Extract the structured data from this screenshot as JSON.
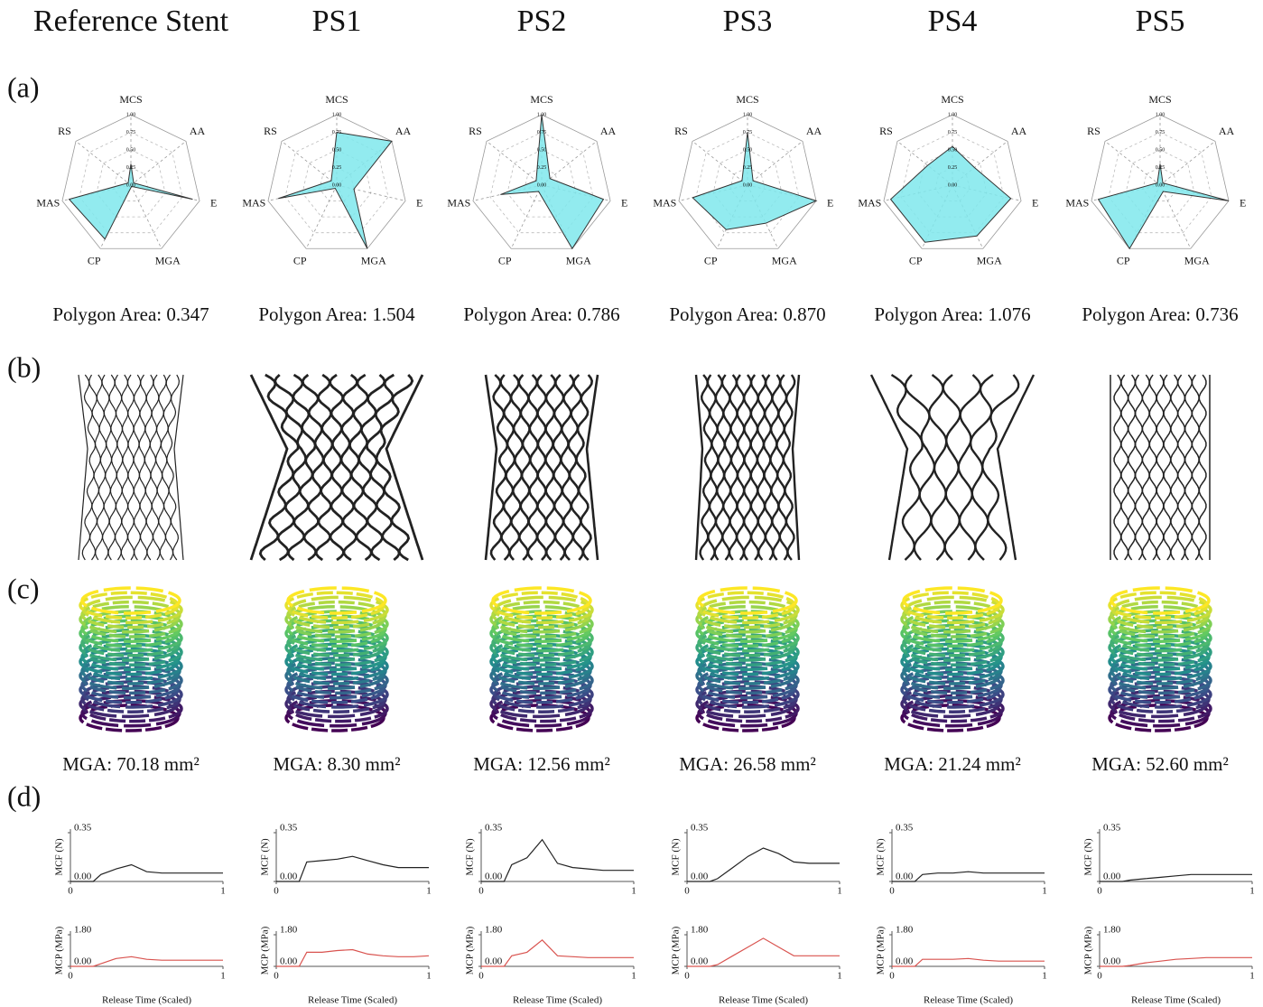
{
  "columns": [
    "Reference Stent",
    "PS1",
    "PS2",
    "PS3",
    "PS4",
    "PS5"
  ],
  "panels": [
    "(a)",
    "(b)",
    "(c)",
    "(d)"
  ],
  "polygon_areas": [
    "Polygon Area: 0.347",
    "Polygon Area: 1.504",
    "Polygon Area: 0.786",
    "Polygon Area: 0.870",
    "Polygon Area: 1.076",
    "Polygon Area: 0.736"
  ],
  "mga_labels": [
    "MGA: 70.18 mm²",
    "MGA: 8.30 mm²",
    "MGA: 12.56 mm²",
    "MGA: 26.58 mm²",
    "MGA: 21.24 mm²",
    "MGA: 52.60 mm²"
  ],
  "chart_data": [
    {
      "type": "radar",
      "axes": [
        "MCS",
        "AA",
        "E",
        "MGA",
        "CP",
        "MAS",
        "RS"
      ],
      "values": [
        0.3,
        0.05,
        0.9,
        0.02,
        0.85,
        0.9,
        0.05
      ],
      "rlim": [
        0,
        1
      ],
      "rticks": [
        {
          "value": 0,
          "label": "0.00"
        },
        {
          "value": 0.25,
          "label": "0.25"
        },
        {
          "value": 0.5,
          "label": "0.50"
        },
        {
          "value": 0.75,
          "label": "0.75"
        },
        {
          "value": 1,
          "label": "1.00"
        }
      ],
      "color": "#7fe7ec"
    },
    {
      "type": "radar",
      "axes": [
        "MCS",
        "AA",
        "E",
        "MGA",
        "CP",
        "MAS",
        "RS"
      ],
      "values": [
        0.75,
        1.0,
        0.25,
        1.0,
        0.05,
        0.85,
        0.1
      ],
      "rlim": [
        0,
        1
      ],
      "rticks": [
        {
          "value": 0,
          "label": "0.00"
        },
        {
          "value": 0.25,
          "label": "0.25"
        },
        {
          "value": 0.5,
          "label": "0.50"
        },
        {
          "value": 0.75,
          "label": "0.75"
        },
        {
          "value": 1,
          "label": "1.00"
        }
      ],
      "color": "#7fe7ec"
    },
    {
      "type": "radar",
      "axes": [
        "MCS",
        "AA",
        "E",
        "MGA",
        "CP",
        "MAS",
        "RS"
      ],
      "values": [
        1.0,
        0.15,
        0.9,
        1.0,
        0.1,
        0.6,
        0.1
      ],
      "rlim": [
        0,
        1
      ],
      "rticks": [
        {
          "value": 0,
          "label": "0.00"
        },
        {
          "value": 0.25,
          "label": "0.25"
        },
        {
          "value": 0.5,
          "label": "0.50"
        },
        {
          "value": 0.75,
          "label": "0.75"
        },
        {
          "value": 1,
          "label": "1.00"
        }
      ],
      "color": "#7fe7ec"
    },
    {
      "type": "radar",
      "axes": [
        "MCS",
        "AA",
        "E",
        "MGA",
        "CP",
        "MAS",
        "RS"
      ],
      "values": [
        0.75,
        0.1,
        1.0,
        0.6,
        0.7,
        0.8,
        0.1
      ],
      "rlim": [
        0,
        1
      ],
      "rticks": [
        {
          "value": 0,
          "label": "0.00"
        },
        {
          "value": 0.25,
          "label": "0.25"
        },
        {
          "value": 0.5,
          "label": "0.50"
        },
        {
          "value": 0.75,
          "label": "0.75"
        },
        {
          "value": 1,
          "label": "1.00"
        }
      ],
      "color": "#7fe7ec"
    },
    {
      "type": "radar",
      "axes": [
        "MCS",
        "AA",
        "E",
        "MGA",
        "CP",
        "MAS",
        "RS"
      ],
      "values": [
        0.55,
        0.4,
        0.85,
        0.8,
        0.9,
        0.9,
        0.45
      ],
      "rlim": [
        0,
        1
      ],
      "rticks": [
        {
          "value": 0,
          "label": "0.00"
        },
        {
          "value": 0.25,
          "label": "0.25"
        },
        {
          "value": 0.5,
          "label": "0.50"
        },
        {
          "value": 0.75,
          "label": "0.75"
        },
        {
          "value": 1,
          "label": "1.00"
        }
      ],
      "color": "#7fe7ec"
    },
    {
      "type": "radar",
      "axes": [
        "MCS",
        "AA",
        "E",
        "MGA",
        "CP",
        "MAS",
        "RS"
      ],
      "values": [
        0.3,
        0.05,
        1.0,
        0.1,
        1.0,
        0.9,
        0.05
      ],
      "rlim": [
        0,
        1
      ],
      "rticks": [
        {
          "value": 0,
          "label": "0.00"
        },
        {
          "value": 0.25,
          "label": "0.25"
        },
        {
          "value": 0.5,
          "label": "0.50"
        },
        {
          "value": 0.75,
          "label": "0.75"
        },
        {
          "value": 1,
          "label": "1.00"
        }
      ],
      "color": "#7fe7ec"
    },
    {
      "type": "line",
      "ylabel": "MCF (N)",
      "x": [
        0,
        0.15,
        0.2,
        0.3,
        0.4,
        0.5,
        0.6,
        0.7,
        0.8,
        0.9,
        1
      ],
      "xlim": [
        0,
        1
      ],
      "xticks": [
        0,
        1
      ],
      "ylim": [
        0,
        0.35
      ],
      "yticks": [
        {
          "value": 0,
          "label": "0.00"
        },
        0.35
      ],
      "series": [
        {
          "color": "#222222",
          "values": [
            0,
            0,
            0.05,
            0.09,
            0.12,
            0.07,
            0.06,
            0.06,
            0.06,
            0.06,
            0.06
          ]
        }
      ]
    },
    {
      "type": "line",
      "ylabel": "MCP (MPa)",
      "xlabel": "Release Time (Scaled)",
      "x": [
        0,
        0.15,
        0.2,
        0.3,
        0.4,
        0.5,
        0.6,
        0.7,
        0.8,
        0.9,
        1
      ],
      "xlim": [
        0,
        1
      ],
      "xticks": [
        0,
        1
      ],
      "ylim": [
        0,
        1.8
      ],
      "yticks": [
        {
          "value": 0,
          "label": "0.00"
        },
        {
          "value": 1.8,
          "label": "1.80"
        }
      ],
      "series": [
        {
          "color": "#d9534f",
          "values": [
            0,
            0,
            0.15,
            0.45,
            0.55,
            0.4,
            0.35,
            0.35,
            0.35,
            0.35,
            0.35
          ]
        }
      ]
    },
    {
      "type": "line",
      "ylabel": "MCF (N)",
      "x": [
        0,
        0.15,
        0.2,
        0.3,
        0.4,
        0.5,
        0.6,
        0.7,
        0.8,
        0.9,
        1
      ],
      "xlim": [
        0,
        1
      ],
      "xticks": [
        0,
        1
      ],
      "ylim": [
        0,
        0.35
      ],
      "yticks": [
        {
          "value": 0,
          "label": "0.00"
        },
        0.35
      ],
      "series": [
        {
          "color": "#222222",
          "values": [
            0,
            0,
            0.14,
            0.15,
            0.16,
            0.18,
            0.15,
            0.12,
            0.1,
            0.1,
            0.1
          ]
        }
      ]
    },
    {
      "type": "line",
      "ylabel": "MCP (MPa)",
      "xlabel": "Release Time (Scaled)",
      "x": [
        0,
        0.15,
        0.2,
        0.3,
        0.4,
        0.5,
        0.6,
        0.7,
        0.8,
        0.9,
        1
      ],
      "xlim": [
        0,
        1
      ],
      "xticks": [
        0,
        1
      ],
      "ylim": [
        0,
        1.8
      ],
      "yticks": [
        {
          "value": 0,
          "label": "0.00"
        },
        {
          "value": 1.8,
          "label": "1.80"
        }
      ],
      "series": [
        {
          "color": "#d9534f",
          "values": [
            0,
            0,
            0.8,
            0.8,
            0.9,
            0.95,
            0.7,
            0.6,
            0.55,
            0.55,
            0.6
          ]
        }
      ]
    },
    {
      "type": "line",
      "ylabel": "MCF (N)",
      "x": [
        0,
        0.15,
        0.2,
        0.3,
        0.4,
        0.5,
        0.6,
        0.7,
        0.8,
        0.9,
        1
      ],
      "xlim": [
        0,
        1
      ],
      "xticks": [
        0,
        1
      ],
      "ylim": [
        0,
        0.35
      ],
      "yticks": [
        {
          "value": 0,
          "label": "0.00"
        },
        0.35
      ],
      "series": [
        {
          "color": "#222222",
          "values": [
            0,
            0,
            0.12,
            0.17,
            0.3,
            0.13,
            0.1,
            0.09,
            0.08,
            0.08,
            0.08
          ]
        }
      ]
    },
    {
      "type": "line",
      "ylabel": "MCP (MPa)",
      "xlabel": "Release Time (Scaled)",
      "x": [
        0,
        0.15,
        0.2,
        0.3,
        0.4,
        0.5,
        0.6,
        0.7,
        0.8,
        0.9,
        1
      ],
      "xlim": [
        0,
        1
      ],
      "xticks": [
        0,
        1
      ],
      "ylim": [
        0,
        1.8
      ],
      "yticks": [
        {
          "value": 0,
          "label": "0.00"
        },
        {
          "value": 1.8,
          "label": "1.80"
        }
      ],
      "series": [
        {
          "color": "#d9534f",
          "values": [
            0,
            0,
            0.6,
            0.8,
            1.5,
            0.6,
            0.55,
            0.5,
            0.5,
            0.5,
            0.5
          ]
        }
      ]
    },
    {
      "type": "line",
      "ylabel": "MCF (N)",
      "x": [
        0,
        0.15,
        0.2,
        0.3,
        0.4,
        0.5,
        0.6,
        0.7,
        0.8,
        0.9,
        1
      ],
      "xlim": [
        0,
        1
      ],
      "xticks": [
        0,
        1
      ],
      "ylim": [
        0,
        0.35
      ],
      "yticks": [
        {
          "value": 0,
          "label": "0.00"
        },
        0.35
      ],
      "series": [
        {
          "color": "#222222",
          "values": [
            0,
            0,
            0.02,
            0.1,
            0.18,
            0.24,
            0.2,
            0.14,
            0.13,
            0.13,
            0.13
          ]
        }
      ]
    },
    {
      "type": "line",
      "ylabel": "MCP (MPa)",
      "xlabel": "Release Time (Scaled)",
      "x": [
        0,
        0.15,
        0.2,
        0.3,
        0.4,
        0.5,
        0.6,
        0.7,
        0.8,
        0.9,
        1
      ],
      "xlim": [
        0,
        1
      ],
      "xticks": [
        0,
        1
      ],
      "ylim": [
        0,
        1.8
      ],
      "yticks": [
        {
          "value": 0,
          "label": "0.00"
        },
        {
          "value": 1.8,
          "label": "1.80"
        }
      ],
      "series": [
        {
          "color": "#d9534f",
          "values": [
            0,
            0,
            0.1,
            0.6,
            1.1,
            1.6,
            1.1,
            0.6,
            0.6,
            0.6,
            0.6
          ]
        }
      ]
    },
    {
      "type": "line",
      "ylabel": "MCF (N)",
      "x": [
        0,
        0.15,
        0.2,
        0.3,
        0.4,
        0.5,
        0.6,
        0.7,
        0.8,
        0.9,
        1
      ],
      "xlim": [
        0,
        1
      ],
      "xticks": [
        0,
        1
      ],
      "ylim": [
        0,
        0.35
      ],
      "yticks": [
        {
          "value": 0,
          "label": "0.00"
        },
        0.35
      ],
      "series": [
        {
          "color": "#222222",
          "values": [
            0,
            0,
            0.05,
            0.06,
            0.06,
            0.07,
            0.06,
            0.06,
            0.06,
            0.06,
            0.06
          ]
        }
      ]
    },
    {
      "type": "line",
      "ylabel": "MCP (MPa)",
      "xlabel": "Release Time (Scaled)",
      "x": [
        0,
        0.15,
        0.2,
        0.3,
        0.4,
        0.5,
        0.6,
        0.7,
        0.8,
        0.9,
        1
      ],
      "xlim": [
        0,
        1
      ],
      "xticks": [
        0,
        1
      ],
      "ylim": [
        0,
        1.8
      ],
      "yticks": [
        {
          "value": 0,
          "label": "0.00"
        },
        {
          "value": 1.8,
          "label": "1.80"
        }
      ],
      "series": [
        {
          "color": "#d9534f",
          "values": [
            0,
            0,
            0.4,
            0.4,
            0.4,
            0.45,
            0.35,
            0.3,
            0.3,
            0.3,
            0.3
          ]
        }
      ]
    },
    {
      "type": "line",
      "ylabel": "MCF (N)",
      "x": [
        0,
        0.15,
        0.2,
        0.3,
        0.4,
        0.5,
        0.6,
        0.7,
        0.8,
        0.9,
        1
      ],
      "xlim": [
        0,
        1
      ],
      "xticks": [
        0,
        1
      ],
      "ylim": [
        0,
        0.35
      ],
      "yticks": [
        {
          "value": 0,
          "label": "0.00"
        },
        0.35
      ],
      "series": [
        {
          "color": "#222222",
          "values": [
            0,
            0,
            0.01,
            0.02,
            0.03,
            0.04,
            0.05,
            0.05,
            0.05,
            0.05,
            0.05
          ]
        }
      ]
    },
    {
      "type": "line",
      "ylabel": "MCP (MPa)",
      "xlabel": "Release Time (Scaled)",
      "x": [
        0,
        0.15,
        0.2,
        0.3,
        0.4,
        0.5,
        0.6,
        0.7,
        0.8,
        0.9,
        1
      ],
      "xlim": [
        0,
        1
      ],
      "xticks": [
        0,
        1
      ],
      "ylim": [
        0,
        1.8
      ],
      "yticks": [
        {
          "value": 0,
          "label": "0.00"
        },
        {
          "value": 1.8,
          "label": "1.80"
        }
      ],
      "series": [
        {
          "color": "#d9534f",
          "values": [
            0,
            0,
            0.05,
            0.2,
            0.3,
            0.4,
            0.45,
            0.5,
            0.5,
            0.5,
            0.5
          ]
        }
      ]
    }
  ]
}
